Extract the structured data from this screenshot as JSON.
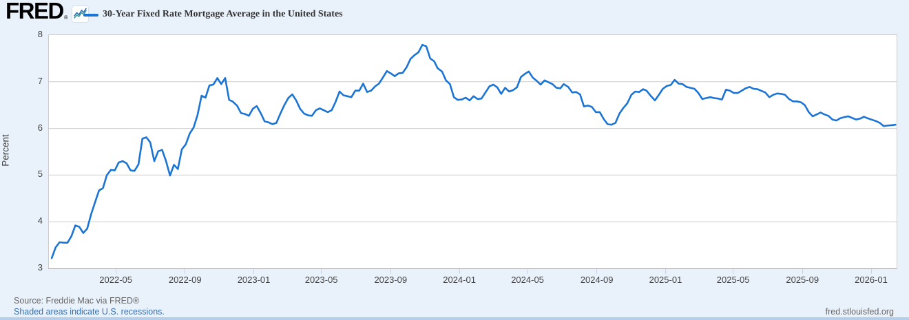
{
  "header": {
    "logo": "FRED",
    "registered_mark": "®",
    "legend_label": "30-Year Fixed Rate Mortgage Average in the United States"
  },
  "footer": {
    "source": "Source: Freddie Mac via FRED®",
    "recessions_note": "Shaded areas indicate U.S. recessions.",
    "site_link": "fred.stlouisfed.org"
  },
  "colors": {
    "line": "#1b74d4",
    "background": "#e9f1fa",
    "plot_background": "#ffffff",
    "grid": "#cccccc",
    "baseline": "#a8a8a8",
    "tick_mark": "#c7d3e2",
    "axis_text": "#444444",
    "source_text": "#666666",
    "link": "#3570b4",
    "bottom_bar": "#b5cfeb",
    "icon_blue": "#2b6cb5",
    "icon_green": "#3da08f"
  },
  "chart_data": {
    "type": "line",
    "title": "30-Year Fixed Rate Mortgage Average in the United States",
    "xlabel": "",
    "ylabel": "Percent",
    "ylim": [
      3,
      8
    ],
    "yticks": [
      3,
      4,
      5,
      6,
      7,
      8
    ],
    "x_domain": [
      "2022-01-01",
      "2026-02-14"
    ],
    "grid": "horizontal",
    "legend_position": "top-left",
    "xticks": [
      {
        "date": "2022-05-01",
        "label": "2022-05"
      },
      {
        "date": "2022-09-01",
        "label": "2022-09"
      },
      {
        "date": "2023-01-01",
        "label": "2023-01"
      },
      {
        "date": "2023-05-01",
        "label": "2023-05"
      },
      {
        "date": "2023-09-01",
        "label": "2023-09"
      },
      {
        "date": "2024-01-01",
        "label": "2024-01"
      },
      {
        "date": "2024-05-01",
        "label": "2024-05"
      },
      {
        "date": "2024-09-01",
        "label": "2024-09"
      },
      {
        "date": "2025-01-01",
        "label": "2025-01"
      },
      {
        "date": "2025-05-01",
        "label": "2025-05"
      },
      {
        "date": "2025-09-01",
        "label": "2025-09"
      },
      {
        "date": "2026-01-01",
        "label": "2026-01"
      }
    ],
    "series": [
      {
        "name": "30-Year Fixed Rate Mortgage Average in the United States",
        "points": [
          [
            "2022-01-06",
            3.22
          ],
          [
            "2022-01-13",
            3.45
          ],
          [
            "2022-01-20",
            3.56
          ],
          [
            "2022-01-27",
            3.55
          ],
          [
            "2022-02-03",
            3.55
          ],
          [
            "2022-02-10",
            3.69
          ],
          [
            "2022-02-17",
            3.92
          ],
          [
            "2022-02-24",
            3.89
          ],
          [
            "2022-03-03",
            3.76
          ],
          [
            "2022-03-10",
            3.85
          ],
          [
            "2022-03-17",
            4.16
          ],
          [
            "2022-03-24",
            4.42
          ],
          [
            "2022-03-31",
            4.67
          ],
          [
            "2022-04-07",
            4.72
          ],
          [
            "2022-04-14",
            5.0
          ],
          [
            "2022-04-21",
            5.11
          ],
          [
            "2022-04-28",
            5.1
          ],
          [
            "2022-05-05",
            5.27
          ],
          [
            "2022-05-12",
            5.3
          ],
          [
            "2022-05-19",
            5.25
          ],
          [
            "2022-05-26",
            5.1
          ],
          [
            "2022-06-02",
            5.09
          ],
          [
            "2022-06-09",
            5.23
          ],
          [
            "2022-06-16",
            5.78
          ],
          [
            "2022-06-23",
            5.81
          ],
          [
            "2022-06-30",
            5.7
          ],
          [
            "2022-07-07",
            5.3
          ],
          [
            "2022-07-14",
            5.51
          ],
          [
            "2022-07-21",
            5.54
          ],
          [
            "2022-07-28",
            5.3
          ],
          [
            "2022-08-04",
            4.99
          ],
          [
            "2022-08-11",
            5.22
          ],
          [
            "2022-08-18",
            5.13
          ],
          [
            "2022-08-25",
            5.55
          ],
          [
            "2022-09-01",
            5.66
          ],
          [
            "2022-09-08",
            5.89
          ],
          [
            "2022-09-15",
            6.02
          ],
          [
            "2022-09-22",
            6.29
          ],
          [
            "2022-09-29",
            6.7
          ],
          [
            "2022-10-06",
            6.66
          ],
          [
            "2022-10-13",
            6.92
          ],
          [
            "2022-10-20",
            6.94
          ],
          [
            "2022-10-27",
            7.08
          ],
          [
            "2022-11-03",
            6.95
          ],
          [
            "2022-11-10",
            7.08
          ],
          [
            "2022-11-17",
            6.61
          ],
          [
            "2022-11-23",
            6.58
          ],
          [
            "2022-12-01",
            6.49
          ],
          [
            "2022-12-08",
            6.33
          ],
          [
            "2022-12-15",
            6.31
          ],
          [
            "2022-12-22",
            6.27
          ],
          [
            "2022-12-29",
            6.42
          ],
          [
            "2023-01-05",
            6.48
          ],
          [
            "2023-01-12",
            6.33
          ],
          [
            "2023-01-19",
            6.15
          ],
          [
            "2023-01-26",
            6.13
          ],
          [
            "2023-02-02",
            6.09
          ],
          [
            "2023-02-09",
            6.12
          ],
          [
            "2023-02-16",
            6.32
          ],
          [
            "2023-02-23",
            6.5
          ],
          [
            "2023-03-02",
            6.65
          ],
          [
            "2023-03-09",
            6.73
          ],
          [
            "2023-03-16",
            6.6
          ],
          [
            "2023-03-23",
            6.42
          ],
          [
            "2023-03-30",
            6.32
          ],
          [
            "2023-04-06",
            6.28
          ],
          [
            "2023-04-13",
            6.27
          ],
          [
            "2023-04-20",
            6.39
          ],
          [
            "2023-04-27",
            6.43
          ],
          [
            "2023-05-04",
            6.39
          ],
          [
            "2023-05-11",
            6.35
          ],
          [
            "2023-05-18",
            6.39
          ],
          [
            "2023-05-25",
            6.57
          ],
          [
            "2023-06-01",
            6.79
          ],
          [
            "2023-06-08",
            6.71
          ],
          [
            "2023-06-15",
            6.69
          ],
          [
            "2023-06-22",
            6.67
          ],
          [
            "2023-06-29",
            6.81
          ],
          [
            "2023-07-06",
            6.81
          ],
          [
            "2023-07-13",
            6.96
          ],
          [
            "2023-07-20",
            6.78
          ],
          [
            "2023-07-27",
            6.81
          ],
          [
            "2023-08-03",
            6.9
          ],
          [
            "2023-08-10",
            6.96
          ],
          [
            "2023-08-17",
            7.09
          ],
          [
            "2023-08-24",
            7.23
          ],
          [
            "2023-08-31",
            7.18
          ],
          [
            "2023-09-07",
            7.12
          ],
          [
            "2023-09-14",
            7.18
          ],
          [
            "2023-09-21",
            7.19
          ],
          [
            "2023-09-28",
            7.31
          ],
          [
            "2023-10-05",
            7.49
          ],
          [
            "2023-10-12",
            7.57
          ],
          [
            "2023-10-19",
            7.63
          ],
          [
            "2023-10-26",
            7.79
          ],
          [
            "2023-11-02",
            7.76
          ],
          [
            "2023-11-09",
            7.5
          ],
          [
            "2023-11-16",
            7.44
          ],
          [
            "2023-11-22",
            7.29
          ],
          [
            "2023-11-30",
            7.22
          ],
          [
            "2023-12-07",
            7.03
          ],
          [
            "2023-12-14",
            6.95
          ],
          [
            "2023-12-21",
            6.67
          ],
          [
            "2023-12-28",
            6.61
          ],
          [
            "2024-01-04",
            6.62
          ],
          [
            "2024-01-11",
            6.66
          ],
          [
            "2024-01-18",
            6.6
          ],
          [
            "2024-01-25",
            6.69
          ],
          [
            "2024-02-01",
            6.63
          ],
          [
            "2024-02-08",
            6.64
          ],
          [
            "2024-02-15",
            6.77
          ],
          [
            "2024-02-22",
            6.9
          ],
          [
            "2024-02-29",
            6.94
          ],
          [
            "2024-03-07",
            6.88
          ],
          [
            "2024-03-14",
            6.74
          ],
          [
            "2024-03-21",
            6.87
          ],
          [
            "2024-03-28",
            6.79
          ],
          [
            "2024-04-04",
            6.82
          ],
          [
            "2024-04-11",
            6.88
          ],
          [
            "2024-04-18",
            7.1
          ],
          [
            "2024-04-25",
            7.17
          ],
          [
            "2024-05-02",
            7.22
          ],
          [
            "2024-05-09",
            7.09
          ],
          [
            "2024-05-16",
            7.02
          ],
          [
            "2024-05-23",
            6.94
          ],
          [
            "2024-05-30",
            7.03
          ],
          [
            "2024-06-06",
            6.99
          ],
          [
            "2024-06-13",
            6.95
          ],
          [
            "2024-06-20",
            6.87
          ],
          [
            "2024-06-27",
            6.86
          ],
          [
            "2024-07-03",
            6.95
          ],
          [
            "2024-07-11",
            6.89
          ],
          [
            "2024-07-18",
            6.77
          ],
          [
            "2024-07-25",
            6.78
          ],
          [
            "2024-08-01",
            6.73
          ],
          [
            "2024-08-08",
            6.47
          ],
          [
            "2024-08-15",
            6.49
          ],
          [
            "2024-08-22",
            6.46
          ],
          [
            "2024-08-29",
            6.35
          ],
          [
            "2024-09-05",
            6.35
          ],
          [
            "2024-09-12",
            6.2
          ],
          [
            "2024-09-19",
            6.09
          ],
          [
            "2024-09-26",
            6.08
          ],
          [
            "2024-10-03",
            6.12
          ],
          [
            "2024-10-10",
            6.32
          ],
          [
            "2024-10-17",
            6.44
          ],
          [
            "2024-10-24",
            6.54
          ],
          [
            "2024-10-31",
            6.72
          ],
          [
            "2024-11-07",
            6.79
          ],
          [
            "2024-11-14",
            6.78
          ],
          [
            "2024-11-21",
            6.84
          ],
          [
            "2024-11-27",
            6.81
          ],
          [
            "2024-12-05",
            6.69
          ],
          [
            "2024-12-12",
            6.6
          ],
          [
            "2024-12-19",
            6.72
          ],
          [
            "2024-12-26",
            6.85
          ],
          [
            "2025-01-02",
            6.91
          ],
          [
            "2025-01-09",
            6.93
          ],
          [
            "2025-01-16",
            7.04
          ],
          [
            "2025-01-23",
            6.96
          ],
          [
            "2025-01-30",
            6.95
          ],
          [
            "2025-02-06",
            6.89
          ],
          [
            "2025-02-13",
            6.87
          ],
          [
            "2025-02-20",
            6.85
          ],
          [
            "2025-02-27",
            6.76
          ],
          [
            "2025-03-06",
            6.63
          ],
          [
            "2025-03-13",
            6.65
          ],
          [
            "2025-03-20",
            6.67
          ],
          [
            "2025-03-27",
            6.65
          ],
          [
            "2025-04-03",
            6.64
          ],
          [
            "2025-04-10",
            6.62
          ],
          [
            "2025-04-17",
            6.83
          ],
          [
            "2025-04-24",
            6.81
          ],
          [
            "2025-05-01",
            6.76
          ],
          [
            "2025-05-08",
            6.76
          ],
          [
            "2025-05-15",
            6.81
          ],
          [
            "2025-05-22",
            6.86
          ],
          [
            "2025-05-29",
            6.89
          ],
          [
            "2025-06-05",
            6.85
          ],
          [
            "2025-06-12",
            6.84
          ],
          [
            "2025-06-18",
            6.81
          ],
          [
            "2025-06-26",
            6.77
          ],
          [
            "2025-07-03",
            6.67
          ],
          [
            "2025-07-10",
            6.72
          ],
          [
            "2025-07-17",
            6.75
          ],
          [
            "2025-07-24",
            6.74
          ],
          [
            "2025-07-31",
            6.72
          ],
          [
            "2025-08-07",
            6.63
          ],
          [
            "2025-08-14",
            6.58
          ],
          [
            "2025-08-21",
            6.58
          ],
          [
            "2025-08-28",
            6.56
          ],
          [
            "2025-09-04",
            6.5
          ],
          [
            "2025-09-11",
            6.35
          ],
          [
            "2025-09-18",
            6.26
          ],
          [
            "2025-09-25",
            6.3
          ],
          [
            "2025-10-02",
            6.34
          ],
          [
            "2025-10-09",
            6.3
          ],
          [
            "2025-10-16",
            6.27
          ],
          [
            "2025-10-23",
            6.19
          ],
          [
            "2025-10-30",
            6.17
          ],
          [
            "2025-11-06",
            6.22
          ],
          [
            "2025-11-13",
            6.24
          ],
          [
            "2025-11-20",
            6.26
          ],
          [
            "2025-11-26",
            6.23
          ],
          [
            "2025-12-04",
            6.19
          ],
          [
            "2025-12-11",
            6.21
          ],
          [
            "2025-12-18",
            6.25
          ],
          [
            "2025-12-24",
            6.22
          ],
          [
            "2025-12-31",
            6.19
          ],
          [
            "2026-01-08",
            6.16
          ],
          [
            "2026-01-15",
            6.12
          ],
          [
            "2026-01-22",
            6.05
          ],
          [
            "2026-01-29",
            6.06
          ],
          [
            "2026-02-05",
            6.07
          ],
          [
            "2026-02-12",
            6.08
          ]
        ]
      }
    ]
  }
}
